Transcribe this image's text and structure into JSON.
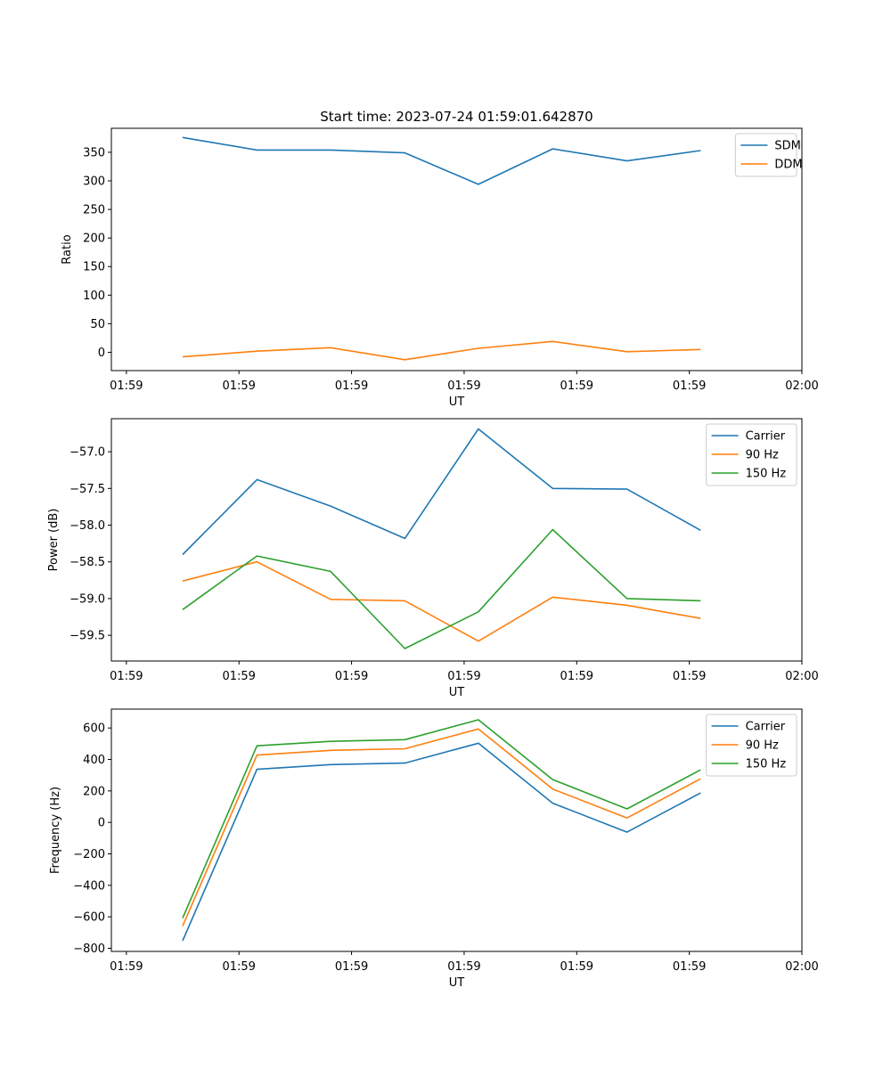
{
  "chart_data": [
    {
      "type": "line",
      "title": "Start time: 2023-07-24 01:59:01.642870",
      "xlabel": "UT",
      "ylabel": "Ratio",
      "ylim": [
        -32,
        392
      ],
      "yticks": [
        0,
        50,
        100,
        150,
        200,
        250,
        300,
        350
      ],
      "xlim": [
        -0.2,
        9.0
      ],
      "xtick_positions": [
        0,
        1.5,
        3,
        4.5,
        6,
        7.5,
        9
      ],
      "xtick_labels": [
        "01:59",
        "01:59",
        "01:59",
        "01:59",
        "01:59",
        "01:59",
        "02:00"
      ],
      "x": [
        0.75,
        1.74,
        2.72,
        3.71,
        4.69,
        5.68,
        6.67,
        7.65
      ],
      "legend": "top-right",
      "series": [
        {
          "name": "SDM",
          "color": "#1f77b4",
          "values": [
            376,
            354,
            354,
            349,
            294,
            356,
            335,
            353
          ]
        },
        {
          "name": "DDM",
          "color": "#ff7f0e",
          "values": [
            -8,
            2,
            8,
            -13,
            7,
            19,
            1,
            5
          ]
        }
      ]
    },
    {
      "type": "line",
      "title": "",
      "xlabel": "UT",
      "ylabel": "Power (dB)",
      "ylim": [
        -59.85,
        -56.55
      ],
      "yticks": [
        -59.5,
        -59.0,
        -58.5,
        -58.0,
        -57.5,
        -57.0
      ],
      "ytick_labels": [
        "−59.5",
        "−59.0",
        "−58.5",
        "−58.0",
        "−57.5",
        "−57.0"
      ],
      "xlim": [
        -0.2,
        9.0
      ],
      "xtick_positions": [
        0,
        1.5,
        3,
        4.5,
        6,
        7.5,
        9
      ],
      "xtick_labels": [
        "01:59",
        "01:59",
        "01:59",
        "01:59",
        "01:59",
        "01:59",
        "02:00"
      ],
      "x": [
        0.75,
        1.74,
        2.72,
        3.71,
        4.69,
        5.68,
        6.67,
        7.65
      ],
      "legend": "top-right",
      "series": [
        {
          "name": "Carrier",
          "color": "#1f77b4",
          "values": [
            -58.4,
            -57.38,
            -57.74,
            -58.18,
            -56.69,
            -57.5,
            -57.51,
            -58.07
          ]
        },
        {
          "name": "90 Hz",
          "color": "#ff7f0e",
          "values": [
            -58.76,
            -58.5,
            -59.01,
            -59.03,
            -59.58,
            -58.98,
            -59.09,
            -59.27
          ]
        },
        {
          "name": "150 Hz",
          "color": "#2ca02c",
          "values": [
            -59.15,
            -58.42,
            -58.63,
            -59.68,
            -59.18,
            -58.06,
            -59.0,
            -59.03
          ]
        }
      ]
    },
    {
      "type": "line",
      "title": "",
      "xlabel": "UT",
      "ylabel": "Frequency (Hz)",
      "ylim": [
        -820,
        720
      ],
      "yticks": [
        -800,
        -600,
        -400,
        -200,
        0,
        200,
        400,
        600
      ],
      "ytick_labels": [
        "−800",
        "−600",
        "−400",
        "−200",
        "0",
        "200",
        "400",
        "600"
      ],
      "xlim": [
        -0.2,
        9.0
      ],
      "xtick_positions": [
        0,
        1.5,
        3,
        4.5,
        6,
        7.5,
        9
      ],
      "xtick_labels": [
        "01:59",
        "01:59",
        "01:59",
        "01:59",
        "01:59",
        "01:59",
        "02:00"
      ],
      "x": [
        0.75,
        1.74,
        2.72,
        3.71,
        4.69,
        5.68,
        6.67,
        7.65
      ],
      "legend": "top-right",
      "series": [
        {
          "name": "Carrier",
          "color": "#1f77b4",
          "values": [
            -752,
            337,
            367,
            377,
            503,
            122,
            -62,
            187
          ]
        },
        {
          "name": "90 Hz",
          "color": "#ff7f0e",
          "values": [
            -658,
            428,
            458,
            468,
            594,
            212,
            28,
            277
          ]
        },
        {
          "name": "150 Hz",
          "color": "#2ca02c",
          "values": [
            -608,
            487,
            515,
            526,
            652,
            272,
            86,
            334
          ]
        }
      ]
    }
  ]
}
